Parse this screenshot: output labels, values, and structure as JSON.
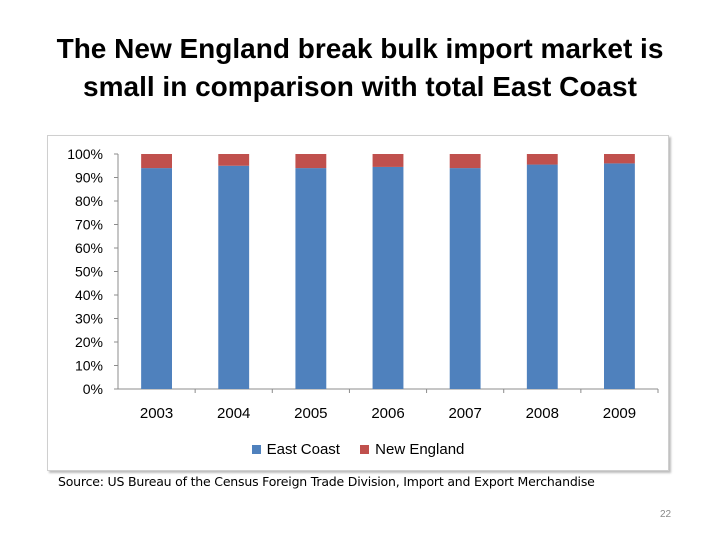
{
  "slide": {
    "title": "The New England break bulk import market is small in comparison with total East Coast",
    "source": "Source: US Bureau of the Census Foreign Trade Division, Import and Export Merchandise",
    "page_number": "22"
  },
  "chart_data": {
    "type": "bar",
    "stacked": true,
    "percent_stacked": true,
    "categories": [
      "2003",
      "2004",
      "2005",
      "2006",
      "2007",
      "2008",
      "2009"
    ],
    "series": [
      {
        "name": "East Coast",
        "color": "#4f81bd",
        "values": [
          94,
          95,
          94,
          94.5,
          94,
          95.5,
          96
        ]
      },
      {
        "name": "New England",
        "color": "#c0504d",
        "values": [
          6,
          5,
          6,
          5.5,
          6,
          4.5,
          4
        ]
      }
    ],
    "yticks": [
      "0%",
      "10%",
      "20%",
      "30%",
      "40%",
      "50%",
      "60%",
      "70%",
      "80%",
      "90%",
      "100%"
    ],
    "ylim": [
      0,
      100
    ],
    "grid": false,
    "legend": "bottom"
  }
}
